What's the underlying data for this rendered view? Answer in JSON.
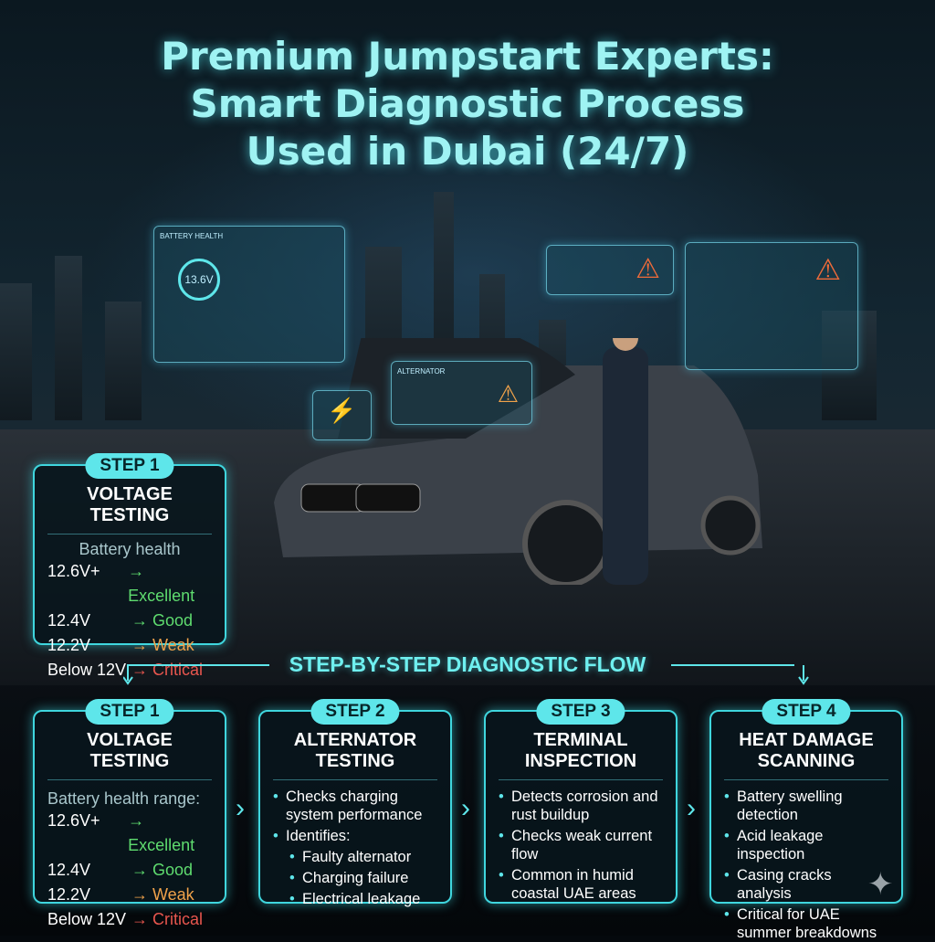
{
  "title": [
    "Premium Jumpstart Experts:",
    "Smart Diagnostic Process",
    "Used in Dubai (24/7)"
  ],
  "holograms": {
    "battery_label": "BATTERY HEALTH",
    "battery_value": "13.6V",
    "alternator_label": "ALTERNATOR"
  },
  "featured_card": {
    "badge": "STEP 1",
    "title": "VOLTAGE TESTING",
    "subtitle": "Battery health",
    "rows": [
      {
        "v": "12.6V+",
        "s": "→ Excellent"
      },
      {
        "v": "12.4V",
        "s": "→ Good"
      },
      {
        "v": "12.2V",
        "s": "→ Weak"
      },
      {
        "v": "Below 12V",
        "s": "→ Critical"
      }
    ]
  },
  "flow_title": "STEP-BY-STEP DIAGNOSTIC FLOW",
  "steps": [
    {
      "badge": "STEP 1",
      "title": "VOLTAGE TESTING",
      "subtitle": "Battery health range:",
      "rows": [
        {
          "v": "12.6V+",
          "s": "→ Excellent"
        },
        {
          "v": "12.4V",
          "s": "→ Good"
        },
        {
          "v": "12.2V",
          "s": "→ Weak"
        },
        {
          "v": "Below 12V",
          "s": "→ Critical"
        }
      ]
    },
    {
      "badge": "STEP 2",
      "title1": "ALTERNATOR",
      "title2": "TESTING",
      "bullets": [
        "Checks charging system performance",
        "Identifies:"
      ],
      "sub": [
        "Faulty alternator",
        "Charging failure",
        "Electrical leakage"
      ]
    },
    {
      "badge": "STEP 3",
      "title1": "TERMINAL",
      "title2": "INSPECTION",
      "bullets": [
        "Detects corrosion and rust buildup",
        "Checks weak current flow",
        "Common in humid coastal UAE areas"
      ]
    },
    {
      "badge": "STEP 4",
      "title1": "HEAT DAMAGE",
      "title2": "SCANNING",
      "bullets": [
        "Battery swelling detection",
        "Acid leakage inspection",
        "Casing cracks analysis",
        "Critical for UAE summer breakdowns"
      ]
    }
  ],
  "colors": {
    "accent": "#5ee6ea",
    "excellent": "#5fdc6f",
    "weak": "#f0a24a",
    "critical": "#e8564e"
  }
}
